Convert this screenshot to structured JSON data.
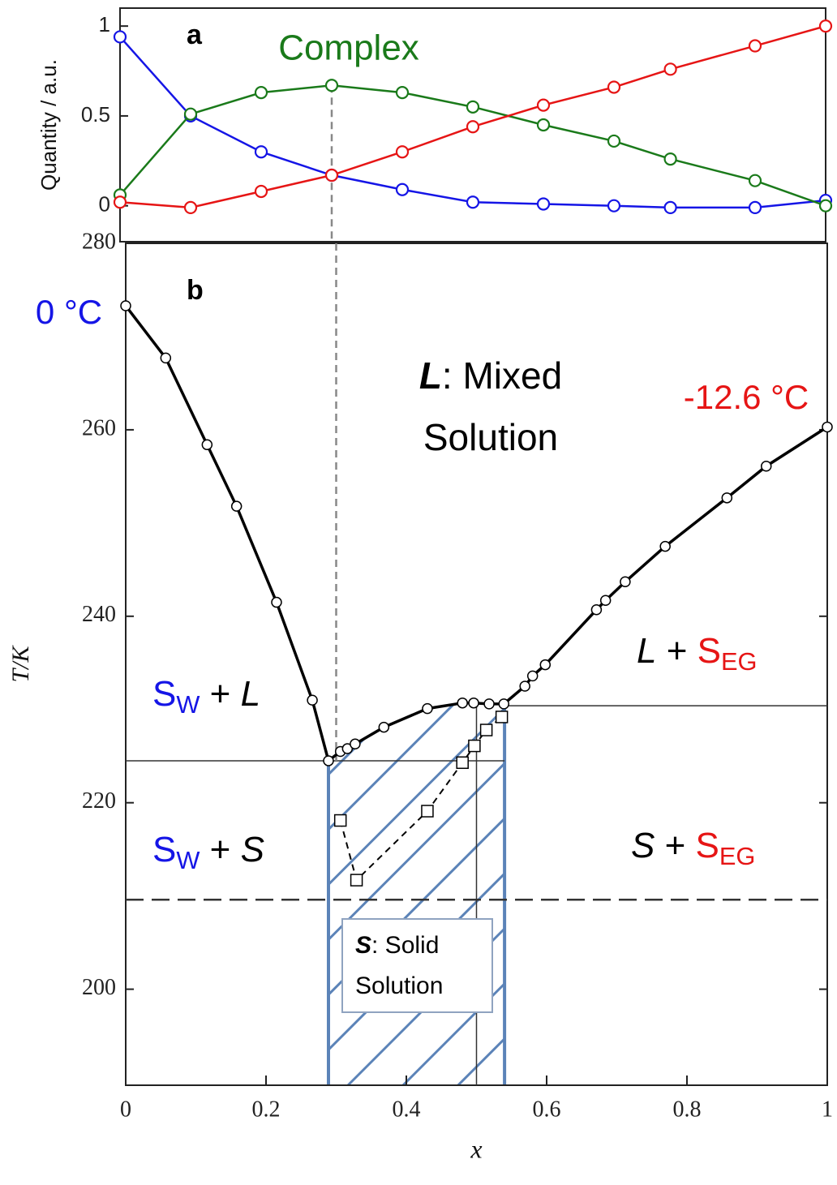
{
  "chart_data": [
    {
      "type": "line",
      "ylabel": "Quantity / a.u.",
      "annotations": [
        {
          "lines": [
            [
              {
                "text": "a",
                "bold": true
              }
            ]
          ]
        }
      ],
      "x": [
        0,
        0.1,
        0.2,
        0.3,
        0.4,
        0.5,
        0.6,
        0.7,
        0.78,
        0.9,
        1
      ],
      "series": [
        {
          "color": "#1515e6",
          "values": [
            0.94,
            0.5,
            0.3,
            0.17,
            0.09,
            0.02,
            0.01,
            0.0,
            -0.01,
            -0.01,
            0.03
          ]
        },
        {
          "name": "Complex",
          "color": "#1a7a1a",
          "values": [
            0.06,
            0.51,
            0.63,
            0.67,
            0.63,
            0.55,
            0.45,
            0.36,
            0.26,
            0.14,
            0.0
          ]
        },
        {
          "color": "#e61515",
          "values": [
            0.02,
            -0.01,
            0.08,
            0.17,
            0.3,
            0.44,
            0.56,
            0.66,
            0.76,
            0.89,
            1.0
          ]
        }
      ],
      "xlim": [
        0,
        1
      ],
      "ylim": [
        -0.2,
        1.1
      ],
      "yticks": [
        0,
        0.5,
        1
      ],
      "vlines": [
        {
          "x": 0.3,
          "ymax": 0.67,
          "dashed": true
        }
      ]
    },
    {
      "type": "line",
      "xlabel": "x",
      "ylabel": "T/K",
      "xlim": [
        0,
        1
      ],
      "ylim": [
        189.7,
        280
      ],
      "xticks": [
        0,
        0.2,
        0.4,
        0.6,
        0.8,
        1
      ],
      "yticks": [
        200,
        220,
        240,
        260,
        280
      ],
      "series": [
        {
          "color": "#000000",
          "marker": "circle",
          "x": [
            0.0,
            0.057,
            0.116,
            0.158,
            0.215,
            0.266,
            0.289,
            0.306,
            0.316,
            0.327,
            0.368,
            0.43,
            0.48,
            0.496,
            0.518,
            0.539,
            0.569,
            0.58,
            0.598,
            0.671,
            0.684,
            0.712,
            0.769,
            0.857,
            0.913,
            1.0
          ],
          "values": [
            273.3,
            267.7,
            258.4,
            251.8,
            241.5,
            231.0,
            224.5,
            225.5,
            225.8,
            226.3,
            228.1,
            230.1,
            230.7,
            230.7,
            230.6,
            230.6,
            232.5,
            233.6,
            234.8,
            240.7,
            241.7,
            243.7,
            247.5,
            252.7,
            256.1,
            260.3
          ]
        },
        {
          "color": "#000000",
          "marker": "square",
          "dashed": true,
          "x": [
            0.306,
            0.329,
            0.43,
            0.48,
            0.497,
            0.514,
            0.536
          ],
          "values": [
            218.1,
            211.7,
            219.1,
            224.3,
            226.1,
            227.8,
            229.2
          ]
        }
      ],
      "hlines": [
        {
          "y": 224.5,
          "xmin": 0,
          "xmax": 0.54
        },
        {
          "y": 230.4,
          "xmin": 0.54,
          "xmax": 1
        },
        {
          "y": 209.6,
          "xmin": 0,
          "xmax": 1,
          "dashed": true
        }
      ],
      "vlines": [
        {
          "x": 0.3,
          "ymin": 224.5,
          "dashed": true
        },
        {
          "x": 0.5,
          "ymax": 230.4
        }
      ],
      "shaded_region": {
        "xmin": 0.289,
        "xmax": 0.54,
        "color": "#5b83b8"
      },
      "annotations": [
        {
          "lines": [
            [
              {
                "text": "b",
                "bold": true
              }
            ]
          ]
        },
        {
          "lines": [
            [
              {
                "text": "0 °C",
                "color": "#1515e6"
              }
            ]
          ]
        },
        {
          "lines": [
            [
              {
                "text": "-12.6 °C",
                "color": "#e61515"
              }
            ]
          ]
        },
        {
          "lines": [
            [
              {
                "text": "L",
                "italic": true,
                "bold": true
              },
              {
                "text": ": Mixed"
              }
            ],
            [
              {
                "text": "Solution"
              }
            ]
          ]
        },
        {
          "lines": [
            [
              {
                "text": "S",
                "color": "#1515e6"
              },
              {
                "text": "W",
                "sub": true,
                "color": "#1515e6"
              },
              {
                "text": " + "
              },
              {
                "text": "L",
                "italic": true
              }
            ]
          ]
        },
        {
          "lines": [
            [
              {
                "text": "S",
                "color": "#1515e6"
              },
              {
                "text": "W",
                "sub": true,
                "color": "#1515e6"
              },
              {
                "text": " + "
              },
              {
                "text": "S",
                "italic": true
              }
            ]
          ]
        },
        {
          "lines": [
            [
              {
                "text": "L",
                "italic": true
              },
              {
                "text": " + "
              },
              {
                "text": "S",
                "color": "#e61515"
              },
              {
                "text": "EG",
                "sub": true,
                "color": "#e61515"
              }
            ]
          ]
        },
        {
          "lines": [
            [
              {
                "text": "S",
                "italic": true
              },
              {
                "text": " + "
              },
              {
                "text": "S",
                "color": "#e61515"
              },
              {
                "text": "EG",
                "sub": true,
                "color": "#e61515"
              }
            ]
          ]
        },
        {
          "lines": [
            [
              {
                "text": "S",
                "italic": true,
                "bold": true
              },
              {
                "text": ": Solid"
              }
            ],
            [
              {
                "text": "Solution"
              }
            ]
          ]
        }
      ]
    }
  ]
}
